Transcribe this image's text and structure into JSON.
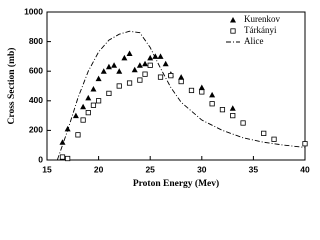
{
  "chart_data": {
    "type": "scatter",
    "x_label": "Proton Energy (Mev)",
    "y_label": "Cross Section (mb)",
    "xlim": [
      15,
      40
    ],
    "xticks": [
      15,
      20,
      25,
      30,
      35,
      40
    ],
    "ylim": [
      0,
      1000
    ],
    "yticks": [
      0,
      200,
      400,
      600,
      800,
      1000
    ],
    "legend": "top-right",
    "series": [
      {
        "name": "Kurenkov",
        "color": "#000000",
        "marker": "triangle",
        "x": [
          16.5,
          17,
          17.8,
          18.5,
          19,
          19.5,
          20,
          20.5,
          21,
          21.5,
          22,
          22.5,
          23,
          23.5,
          24,
          24.5,
          25,
          25.5,
          26,
          26.5,
          27,
          28,
          30,
          31,
          33
        ],
        "values": [
          120,
          210,
          300,
          360,
          420,
          480,
          550,
          600,
          630,
          640,
          600,
          690,
          720,
          610,
          640,
          650,
          690,
          700,
          700,
          650,
          580,
          560,
          490,
          440,
          350
        ]
      },
      {
        "name": "Tárkányi",
        "color": "#000000",
        "marker": "square",
        "x": [
          16.5,
          17,
          18,
          18.5,
          19,
          19.5,
          20,
          21,
          22,
          23,
          24,
          24.5,
          25,
          26,
          27,
          28,
          29,
          30,
          31,
          32,
          33,
          34,
          36,
          37,
          40
        ],
        "values": [
          20,
          10,
          170,
          270,
          320,
          370,
          400,
          450,
          500,
          520,
          540,
          580,
          640,
          560,
          570,
          530,
          470,
          460,
          380,
          340,
          300,
          250,
          180,
          140,
          110
        ]
      },
      {
        "name": "Alice",
        "color": "#000000",
        "marker": "dashdot-line",
        "x": [
          16,
          17,
          18,
          19,
          20,
          21,
          22,
          23,
          24,
          25,
          26,
          27,
          28,
          30,
          32,
          34,
          36,
          38,
          40
        ],
        "values": [
          0,
          200,
          420,
          600,
          730,
          810,
          850,
          870,
          860,
          760,
          620,
          490,
          390,
          270,
          200,
          150,
          120,
          100,
          85
        ]
      }
    ]
  }
}
